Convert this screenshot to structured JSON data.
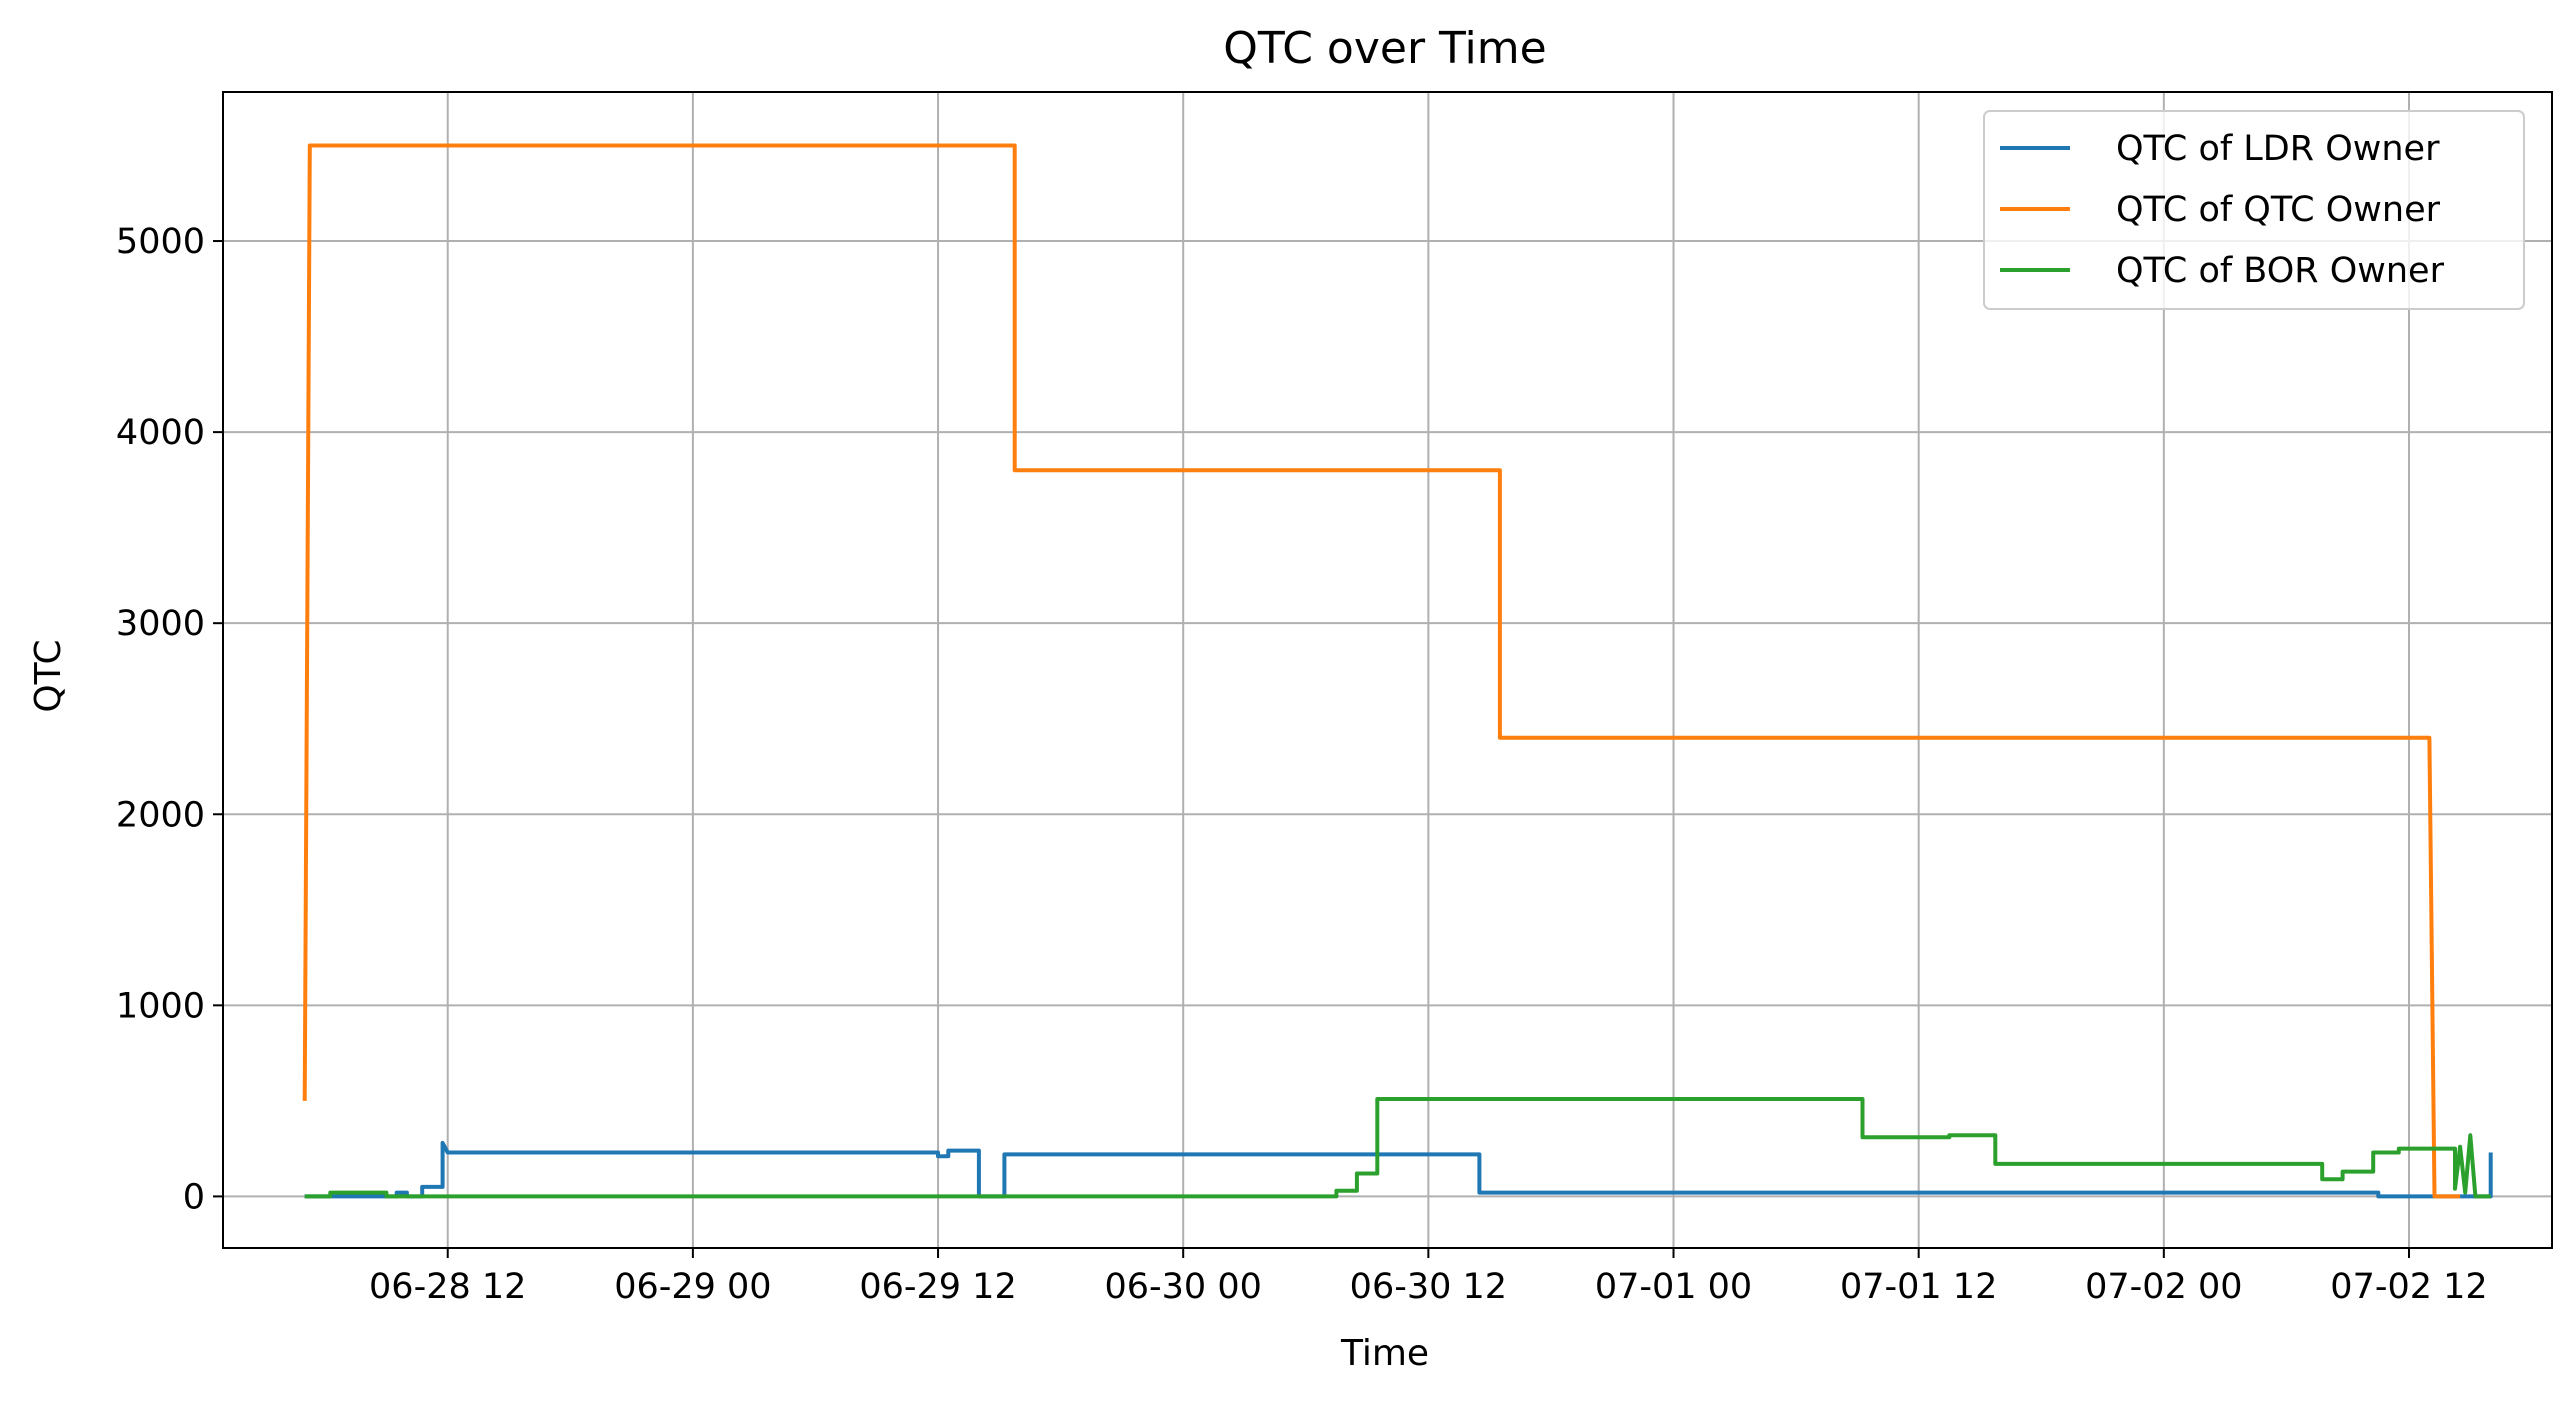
{
  "chart_data": {
    "type": "line",
    "title": "QTC over Time",
    "xlabel": "Time",
    "ylabel": "QTC",
    "x_ticks": [
      "06-28 12",
      "06-29 00",
      "06-29 12",
      "06-30 00",
      "06-30 12",
      "07-01 00",
      "07-01 12",
      "07-02 00",
      "07-02 12"
    ],
    "y_ticks": [
      "0",
      "1000",
      "2000",
      "3000",
      "4000",
      "5000"
    ],
    "xlim": [
      "06-28 01:00",
      "07-02 19:00"
    ],
    "ylim": [
      -270,
      5780
    ],
    "grid": true,
    "legend_position": "top-right",
    "series": [
      {
        "name": "QTC of LDR Owner",
        "color": "#1f77b4",
        "points": [
          [
            "06-28 05:00",
            0
          ],
          [
            "06-28 09:30",
            0
          ],
          [
            "06-28 09:30",
            20
          ],
          [
            "06-28 10:00",
            20
          ],
          [
            "06-28 10:00",
            0
          ],
          [
            "06-28 10:45",
            0
          ],
          [
            "06-28 10:45",
            50
          ],
          [
            "06-28 11:45",
            50
          ],
          [
            "06-28 11:45",
            280
          ],
          [
            "06-28 12:00",
            230
          ],
          [
            "06-29 12:00",
            230
          ],
          [
            "06-29 12:00",
            210
          ],
          [
            "06-29 12:30",
            210
          ],
          [
            "06-29 12:30",
            240
          ],
          [
            "06-29 14:00",
            240
          ],
          [
            "06-29 14:00",
            0
          ],
          [
            "06-29 15:15",
            0
          ],
          [
            "06-29 15:15",
            220
          ],
          [
            "06-30 14:30",
            220
          ],
          [
            "06-30 14:30",
            20
          ],
          [
            "07-02 10:30",
            20
          ],
          [
            "07-02 10:30",
            0
          ],
          [
            "07-02 16:00",
            0
          ],
          [
            "07-02 16:00",
            230
          ]
        ]
      },
      {
        "name": "QTC of QTC Owner",
        "color": "#ff7f0e",
        "points": [
          [
            "06-28 05:00",
            500
          ],
          [
            "06-28 05:15",
            5500
          ],
          [
            "06-29 15:45",
            5500
          ],
          [
            "06-29 15:45",
            3800
          ],
          [
            "06-30 15:30",
            3800
          ],
          [
            "06-30 15:30",
            2400
          ],
          [
            "07-02 13:00",
            2400
          ],
          [
            "07-02 13:15",
            0
          ],
          [
            "07-02 14:30",
            0
          ]
        ]
      },
      {
        "name": "QTC of BOR Owner",
        "color": "#2ca02c",
        "points": [
          [
            "06-28 05:00",
            0
          ],
          [
            "06-28 06:15",
            0
          ],
          [
            "06-28 06:15",
            20
          ],
          [
            "06-28 09:00",
            20
          ],
          [
            "06-28 09:00",
            0
          ],
          [
            "06-30 07:30",
            0
          ],
          [
            "06-30 07:30",
            30
          ],
          [
            "06-30 08:30",
            30
          ],
          [
            "06-30 08:30",
            120
          ],
          [
            "06-30 09:30",
            120
          ],
          [
            "06-30 09:30",
            510
          ],
          [
            "07-01 09:15",
            510
          ],
          [
            "07-01 09:15",
            310
          ],
          [
            "07-01 13:30",
            310
          ],
          [
            "07-01 13:30",
            320
          ],
          [
            "07-01 15:45",
            320
          ],
          [
            "07-01 15:45",
            170
          ],
          [
            "07-02 07:45",
            170
          ],
          [
            "07-02 07:45",
            90
          ],
          [
            "07-02 08:45",
            90
          ],
          [
            "07-02 08:45",
            130
          ],
          [
            "07-02 10:15",
            130
          ],
          [
            "07-02 10:15",
            230
          ],
          [
            "07-02 11:30",
            230
          ],
          [
            "07-02 11:30",
            250
          ],
          [
            "07-02 14:15",
            250
          ],
          [
            "07-02 14:15",
            40
          ],
          [
            "07-02 14:30",
            260
          ],
          [
            "07-02 14:45",
            20
          ],
          [
            "07-02 15:00",
            320
          ],
          [
            "07-02 15:15",
            0
          ],
          [
            "07-02 16:00",
            0
          ]
        ]
      }
    ]
  }
}
